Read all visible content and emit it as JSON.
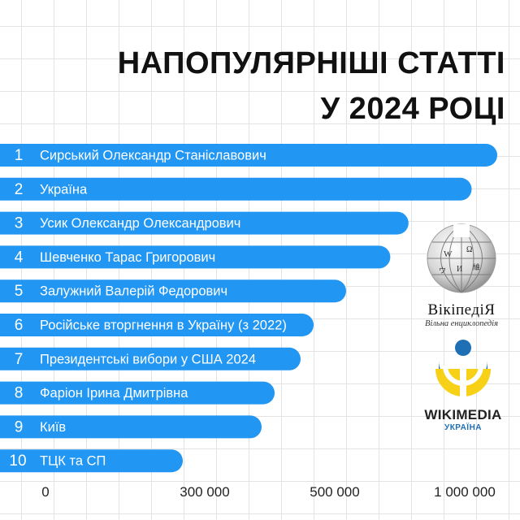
{
  "title": {
    "line1": "НАПОПУЛЯРНІШІ СТАТТІ",
    "line2": "У 2024 РОЦІ"
  },
  "colors": {
    "bar": "#2196f3",
    "bar_text": "#ffffff",
    "grid": "#e3e3e3"
  },
  "chart_data": {
    "type": "bar",
    "orientation": "horizontal",
    "title": "НАПОПУЛЯРНІШІ СТАТТІ У 2024 РОЦІ",
    "ranks": [
      "1",
      "2",
      "3",
      "4",
      "5",
      "6",
      "7",
      "8",
      "9",
      "10"
    ],
    "categories": [
      "Сирський Олександр Станіславович",
      "Україна",
      "Усик Олександр Олександрович",
      "Шевченко Тарас Григорович",
      "Залужний Валерій Федорович",
      "Російське вторгнення в Україну (з 2022)",
      "Президентські вибори у США 2024",
      "Фаріон Ірина Дмитрівна",
      "Київ",
      "ТЦК та СП"
    ],
    "values": [
      1120000,
      1030000,
      790000,
      720000,
      550000,
      470000,
      450000,
      410000,
      390000,
      270000
    ],
    "x_ticks": [
      {
        "value": 0,
        "label": "0"
      },
      {
        "value": 300000,
        "label": "300 000"
      },
      {
        "value": 500000,
        "label": "500 000"
      },
      {
        "value": 1000000,
        "label": "1 000 000"
      }
    ],
    "grid": true,
    "legend": "none"
  },
  "logos": {
    "wikipedia": {
      "icon": "wikipedia-globe-icon",
      "wordmark": "ВікіпедіЯ",
      "tagline": "Вільна енциклопедія"
    },
    "wikimedia": {
      "icon": "wikimedia-ukraine-icon",
      "name": "WIKIMEDIA",
      "country": "УКРАЇНА"
    }
  }
}
